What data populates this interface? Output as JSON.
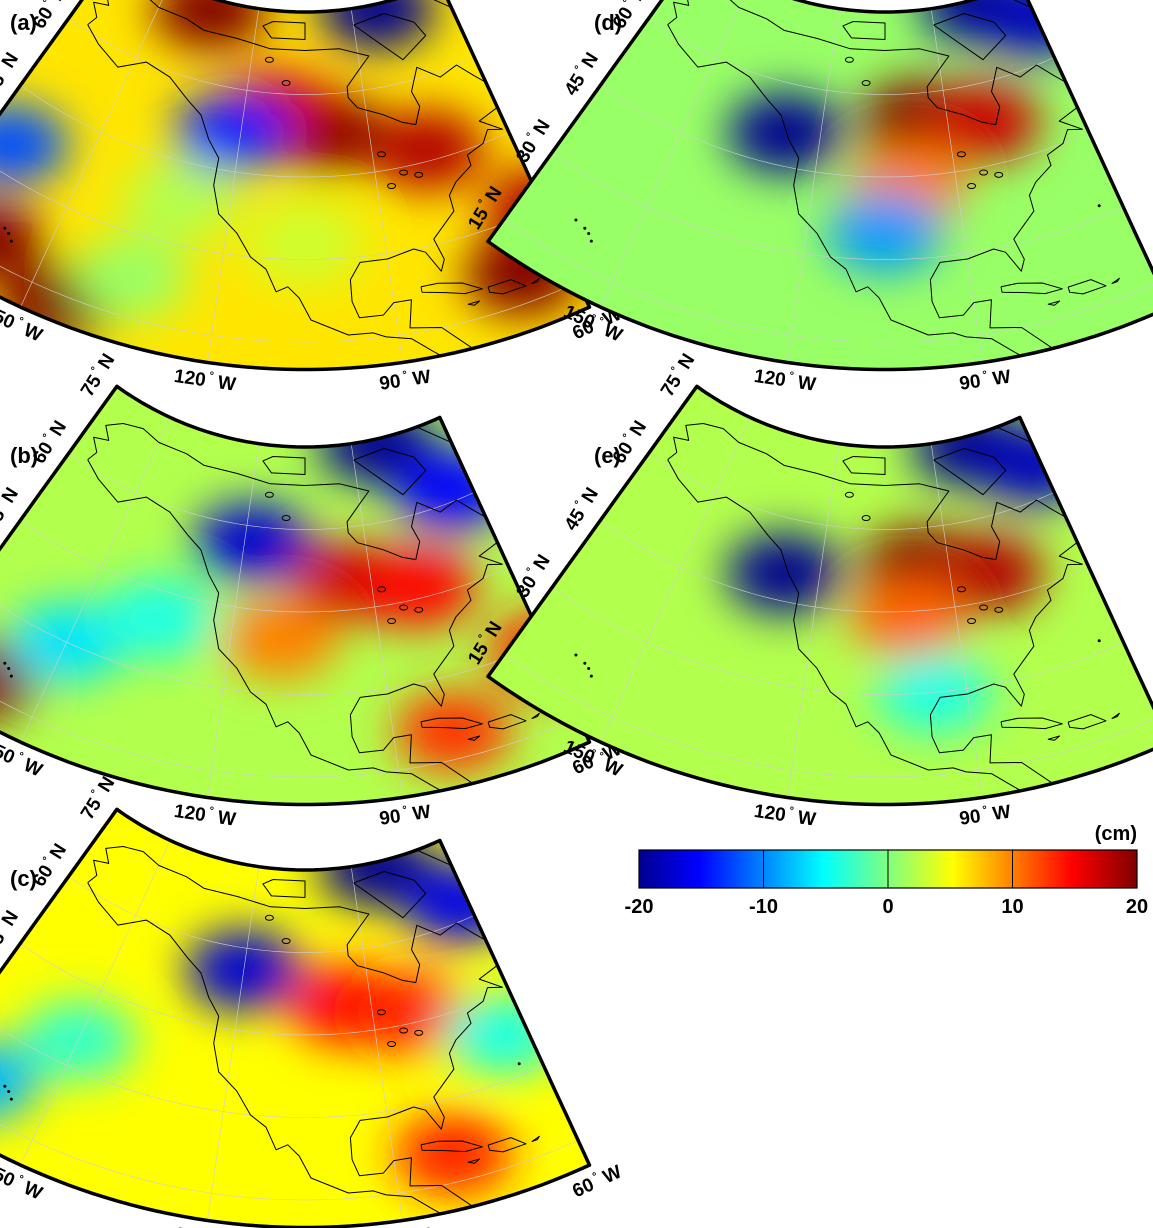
{
  "colorbar": {
    "unit": "(cm)",
    "ticks": [
      "-20",
      "-10",
      "0",
      "10",
      "20"
    ],
    "min": -20,
    "max": 20,
    "colormap": [
      "#00008f",
      "#0000ff",
      "#00ffff",
      "#ffff00",
      "#ff0000",
      "#800000"
    ]
  },
  "axes": {
    "lat_labels": [
      {
        "value": "75",
        "hemi": "N"
      },
      {
        "value": "60",
        "hemi": "N"
      },
      {
        "value": "45",
        "hemi": "N"
      },
      {
        "value": "30",
        "hemi": "N"
      },
      {
        "value": "15",
        "hemi": "N"
      }
    ],
    "lon_labels": [
      {
        "value": "150",
        "hemi": "W"
      },
      {
        "value": "120",
        "hemi": "W"
      },
      {
        "value": "90",
        "hemi": "W"
      },
      {
        "value": "60",
        "hemi": "W"
      }
    ],
    "degree_symbol": "°"
  },
  "panels": [
    {
      "label": "(a)",
      "background_value": 6,
      "anomalies": [
        {
          "lon": -100,
          "lat": 53,
          "value": 20
        },
        {
          "lon": -78,
          "lat": 47,
          "value": 18
        },
        {
          "lon": -112,
          "lat": 57,
          "value": 17
        },
        {
          "lon": -122,
          "lat": 52,
          "value": -14
        },
        {
          "lon": -82,
          "lat": 74,
          "value": -20
        },
        {
          "lon": -135,
          "lat": 73,
          "value": 20
        },
        {
          "lon": -160,
          "lat": 18,
          "value": 20
        },
        {
          "lon": -145,
          "lat": 13,
          "value": 20
        },
        {
          "lon": -68,
          "lat": 20,
          "value": 20
        },
        {
          "lon": -60,
          "lat": 30,
          "value": 18
        },
        {
          "lon": -165,
          "lat": 35,
          "value": -12
        },
        {
          "lon": -130,
          "lat": 38,
          "value": 2
        },
        {
          "lon": -135,
          "lat": 22,
          "value": 1
        },
        {
          "lon": -105,
          "lat": 33,
          "value": 3
        }
      ]
    },
    {
      "label": "(b)",
      "background_value": 2,
      "anomalies": [
        {
          "lon": -95,
          "lat": 50,
          "value": 17
        },
        {
          "lon": -80,
          "lat": 47,
          "value": 15
        },
        {
          "lon": -118,
          "lat": 57,
          "value": -17
        },
        {
          "lon": -82,
          "lat": 74,
          "value": -20
        },
        {
          "lon": -65,
          "lat": 62,
          "value": -15
        },
        {
          "lon": -160,
          "lat": 17,
          "value": 20
        },
        {
          "lon": -80,
          "lat": 20,
          "value": 13
        },
        {
          "lon": -60,
          "lat": 28,
          "value": 14
        },
        {
          "lon": -150,
          "lat": 30,
          "value": -6
        },
        {
          "lon": -135,
          "lat": 40,
          "value": -4
        },
        {
          "lon": -110,
          "lat": 40,
          "value": 10
        }
      ]
    },
    {
      "label": "(c)",
      "background_value": 5,
      "anomalies": [
        {
          "lon": -95,
          "lat": 50,
          "value": 15
        },
        {
          "lon": -82,
          "lat": 47,
          "value": 14
        },
        {
          "lon": -120,
          "lat": 56,
          "value": -17
        },
        {
          "lon": -82,
          "lat": 74,
          "value": -20
        },
        {
          "lon": -62,
          "lat": 63,
          "value": -16
        },
        {
          "lon": -162,
          "lat": 20,
          "value": -8
        },
        {
          "lon": -80,
          "lat": 20,
          "value": 14
        },
        {
          "lon": -150,
          "lat": 35,
          "value": -3
        },
        {
          "lon": -65,
          "lat": 38,
          "value": -4
        }
      ]
    },
    {
      "label": "(d)",
      "background_value": 1,
      "anomalies": [
        {
          "lon": -97,
          "lat": 55,
          "value": 20
        },
        {
          "lon": -82,
          "lat": 53,
          "value": 17
        },
        {
          "lon": -100,
          "lat": 44,
          "value": 10
        },
        {
          "lon": -128,
          "lat": 51,
          "value": -20
        },
        {
          "lon": -75,
          "lat": 74,
          "value": -20
        },
        {
          "lon": -60,
          "lat": 68,
          "value": -18
        },
        {
          "lon": -105,
          "lat": 35,
          "value": -9
        }
      ]
    },
    {
      "label": "(e)",
      "background_value": 2,
      "anomalies": [
        {
          "lon": -97,
          "lat": 53,
          "value": 20
        },
        {
          "lon": -82,
          "lat": 50,
          "value": 18
        },
        {
          "lon": -100,
          "lat": 44,
          "value": 11
        },
        {
          "lon": -128,
          "lat": 50,
          "value": -20
        },
        {
          "lon": -78,
          "lat": 73,
          "value": -20
        },
        {
          "lon": -62,
          "lat": 66,
          "value": -18
        },
        {
          "lon": -96,
          "lat": 30,
          "value": -4
        }
      ]
    }
  ]
}
